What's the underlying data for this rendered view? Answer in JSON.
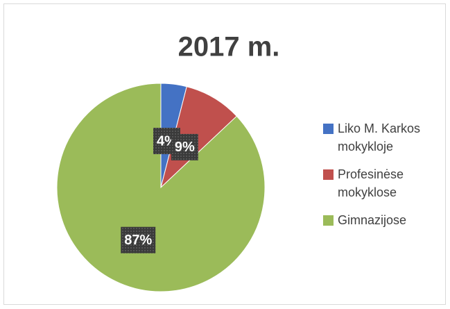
{
  "chart_data": {
    "type": "pie",
    "title": "2017 m.",
    "categories": [
      "Liko M. Karkos mokykloje",
      "Profesinėse mokyklose",
      "Gimnazijose"
    ],
    "values": [
      4,
      9,
      87
    ],
    "value_labels": [
      "4%",
      "9%",
      "87%"
    ],
    "colors": [
      "#4472c4",
      "#c0504d",
      "#9bbb59"
    ],
    "legend": "right"
  }
}
